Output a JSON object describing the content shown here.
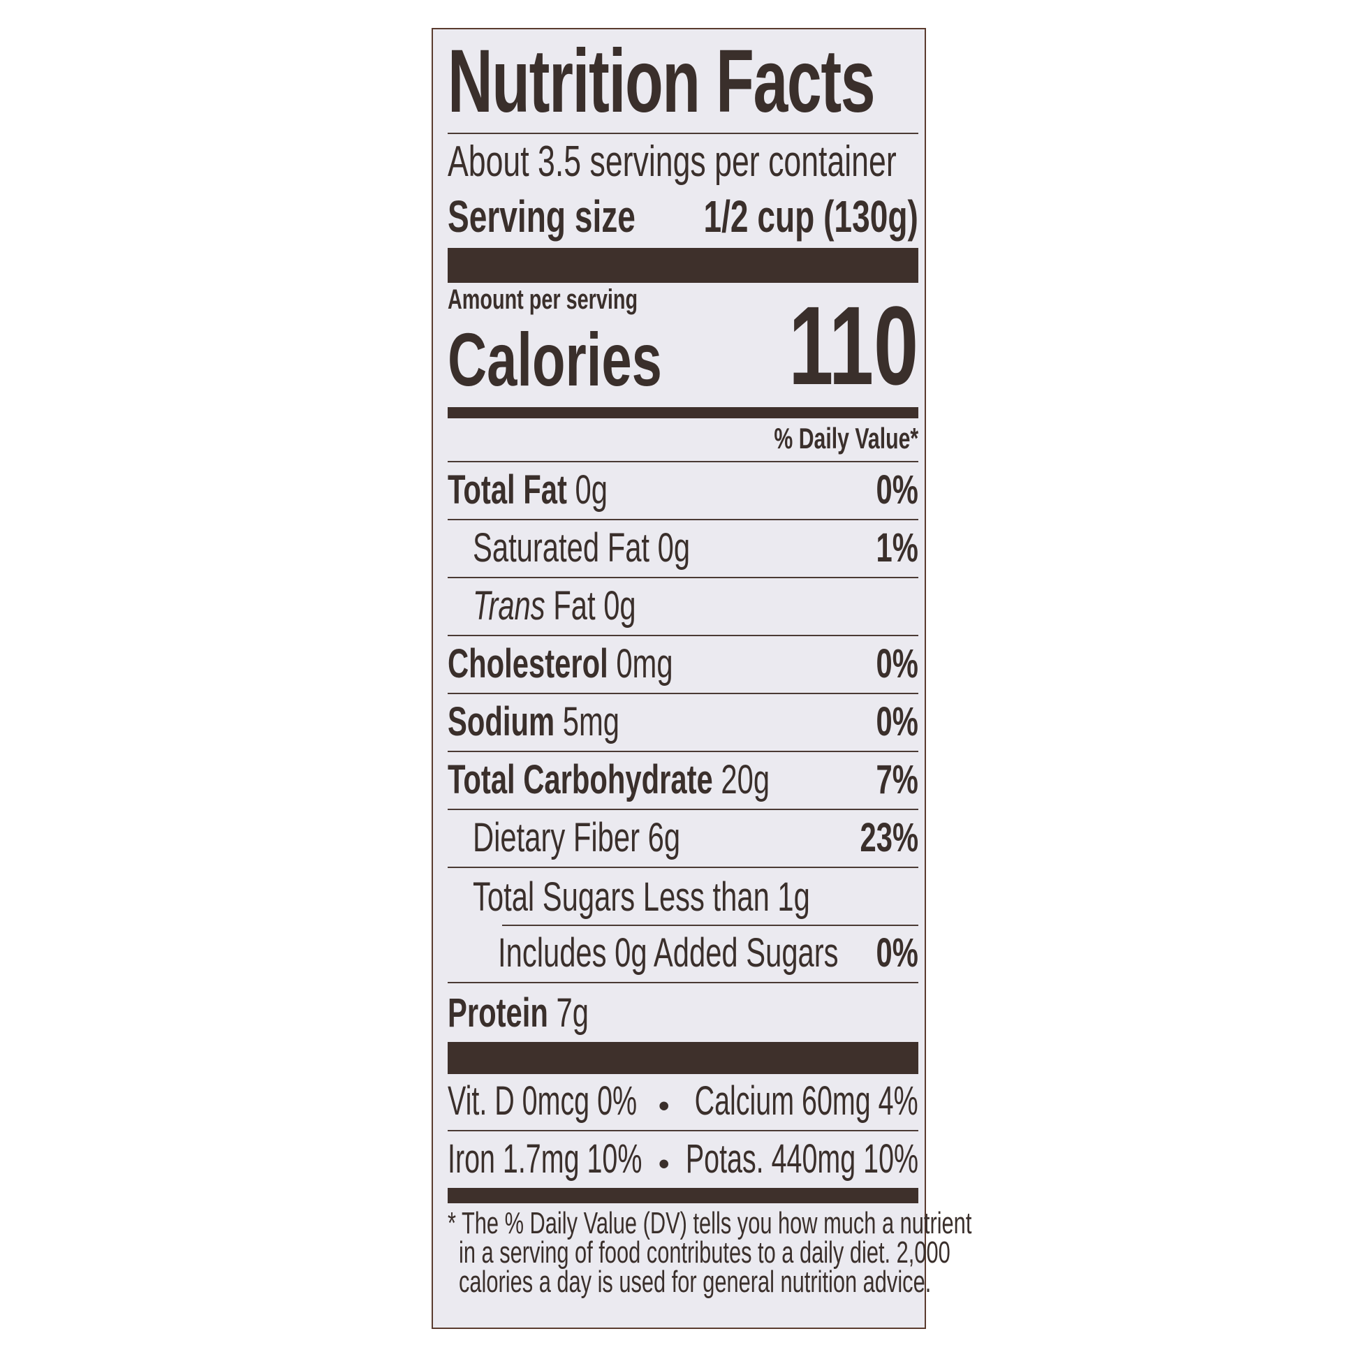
{
  "title": "Nutrition Facts",
  "servings_per_container": "About 3.5 servings per container",
  "serving_size_label": "Serving size",
  "serving_size_value": "1/2 cup (130g)",
  "amount_per_serving": "Amount per serving",
  "calories_label": "Calories",
  "calories_value": "110",
  "daily_value_header": "% Daily Value*",
  "nutrients": [
    {
      "name": "Total Fat",
      "amount": "0g",
      "dv": "0%"
    },
    {
      "name": "Saturated Fat",
      "amount": "0g",
      "dv": "1%"
    },
    {
      "name": "Trans",
      "name_rest": "Fat",
      "amount": "0g",
      "dv": ""
    },
    {
      "name": "Cholesterol",
      "amount": "0mg",
      "dv": "0%"
    },
    {
      "name": "Sodium",
      "amount": "5mg",
      "dv": "0%"
    },
    {
      "name": "Total Carbohydrate",
      "amount": "20g",
      "dv": "7%"
    },
    {
      "name": "Dietary Fiber",
      "amount": "6g",
      "dv": "23%"
    },
    {
      "name": "Total Sugars Less than",
      "amount": "1g",
      "dv": ""
    },
    {
      "name": "Includes 0g Added Sugars",
      "amount": "",
      "dv": "0%"
    },
    {
      "name": "Protein",
      "amount": "7g",
      "dv": ""
    }
  ],
  "vitamins": [
    {
      "left": "Vit. D 0mcg 0%",
      "right": "Calcium 60mg 4%"
    },
    {
      "left": "Iron 1.7mg 10%",
      "right": "Potas. 440mg 10%"
    }
  ],
  "bullet": "•",
  "footnote": [
    "* The % Daily Value (DV) tells you how much a nutrient",
    "in a serving of food contributes to a daily diet. 2,000",
    "calories a day is used for general nutrition advice."
  ]
}
